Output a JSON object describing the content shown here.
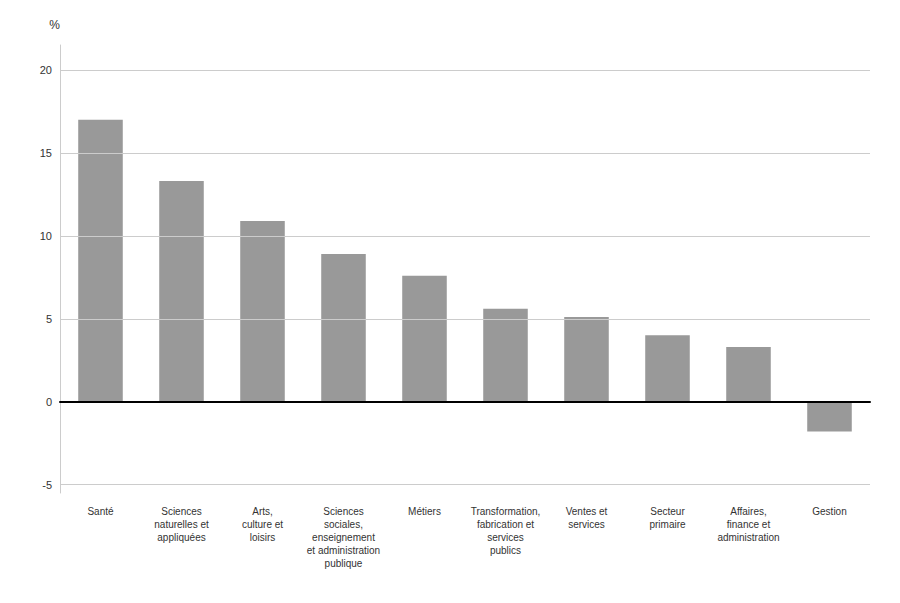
{
  "chart_data": {
    "type": "bar",
    "ylabel": "%",
    "categories": [
      "Santé",
      "Sciences\nnaturelles et\nappliquées",
      "Arts,\nculture et\nloisirs",
      "Sciences\nsociales,\nenseignement\net administration\npublique",
      "Métiers",
      "Transformation,\nfabrication et\nservices\npublics",
      "Ventes et\nservices",
      "Secteur\nprimaire",
      "Affaires,\nfinance et\nadministration",
      "Gestion"
    ],
    "values": [
      17.0,
      13.3,
      10.9,
      8.9,
      7.6,
      5.6,
      5.1,
      4.0,
      3.3,
      -1.8
    ],
    "color": "#999999",
    "ylim": [
      -5.5,
      21.5
    ],
    "yticks": [
      -5,
      0,
      5,
      10,
      15,
      20
    ],
    "grid": true
  }
}
